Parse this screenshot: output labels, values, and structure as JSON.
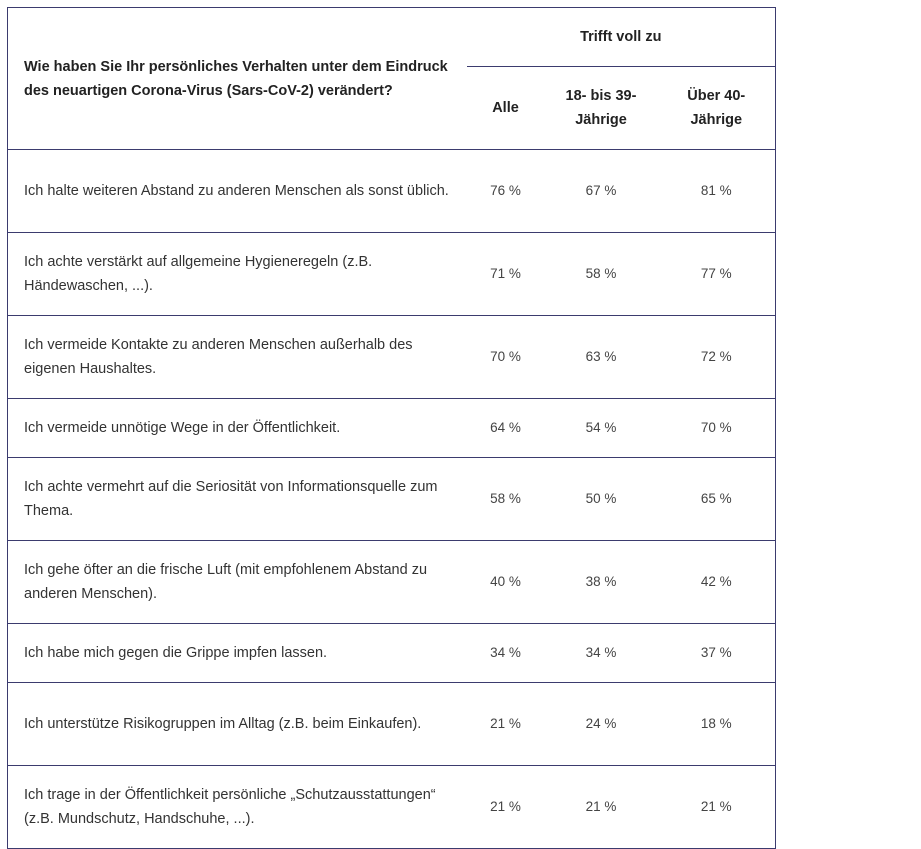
{
  "header": {
    "question": "Wie haben Sie Ihr persönliches Verhalten unter dem Eindruck des neuartigen Corona-Virus (Sars-CoV-2) verändert?",
    "group": "Trifft voll zu",
    "columns": [
      "Alle",
      "18- bis 39-Jährige",
      "Über 40-Jährige"
    ]
  },
  "rows": [
    {
      "statement": "Ich halte weiteren Abstand zu anderen Menschen als sonst üblich.",
      "values": [
        "76 %",
        "67 %",
        "81 %"
      ]
    },
    {
      "statement": "Ich achte verstärkt auf allgemeine Hygieneregeln (z.B. Händewaschen, ...).",
      "values": [
        "71 %",
        "58 %",
        "77 %"
      ]
    },
    {
      "statement": "Ich vermeide Kontakte zu anderen Menschen außerhalb des eigenen Haushaltes.",
      "values": [
        "70 %",
        "63 %",
        "72 %"
      ]
    },
    {
      "statement": "Ich vermeide unnötige Wege in der Öffentlichkeit.",
      "values": [
        "64 %",
        "54 %",
        "70 %"
      ]
    },
    {
      "statement": "Ich achte vermehrt auf die Seriosität von Informationsquelle zum Thema.",
      "values": [
        "58 %",
        "50 %",
        "65 %"
      ]
    },
    {
      "statement": "Ich gehe öfter an die frische Luft (mit empfohlenem Abstand zu anderen Menschen).",
      "values": [
        "40 %",
        "38 %",
        "42 %"
      ]
    },
    {
      "statement": "Ich habe mich gegen die Grippe impfen lassen.",
      "values": [
        "34 %",
        "34 %",
        "37 %"
      ]
    },
    {
      "statement": "Ich unterstütze Risikogruppen im Alltag (z.B. beim Einkaufen).",
      "values": [
        "21 %",
        "24 %",
        "18 %"
      ]
    },
    {
      "statement": "Ich trage in der Öffentlichkeit persönliche „Schutzausstattungen“ (z.B. Mundschutz, Handschuhe, ...).",
      "values": [
        "21 %",
        "21 %",
        "21 %"
      ]
    }
  ]
}
